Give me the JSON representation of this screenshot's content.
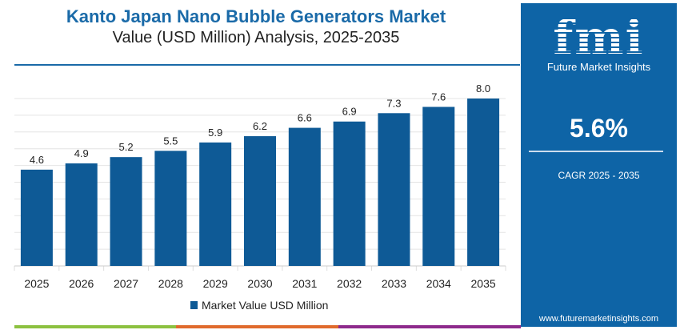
{
  "title": "Kanto Japan Nano Bubble Generators Market",
  "subtitle": "Value (USD Million) Analysis, 2025-2035",
  "chart_data": {
    "type": "bar",
    "title": "Kanto Japan Nano Bubble Generators Market",
    "subtitle": "Value (USD Million) Analysis, 2025-2035",
    "categories": [
      "2025",
      "2026",
      "2027",
      "2028",
      "2029",
      "2030",
      "2031",
      "2032",
      "2033",
      "2034",
      "2035"
    ],
    "series": [
      {
        "name": "Market Value USD Million",
        "values": [
          4.6,
          4.9,
          5.2,
          5.5,
          5.9,
          6.2,
          6.6,
          6.9,
          7.3,
          7.6,
          8.0
        ],
        "color": "#0e5a96"
      }
    ],
    "ylim": [
      0,
      8
    ],
    "grid": true,
    "legend": "bottom-center"
  },
  "panel": {
    "logo": "fmi",
    "logo_sub": "Future Market Insights",
    "cagr": "5.6%",
    "cagr_label": "CAGR 2025 - 2035",
    "url": "www.futuremarketinsights.com"
  },
  "colors": {
    "brand": "#0e64a6",
    "bar": "#0e5a96",
    "stripe": [
      "#8cc140",
      "#e06a2c",
      "#8e2a8c"
    ]
  }
}
